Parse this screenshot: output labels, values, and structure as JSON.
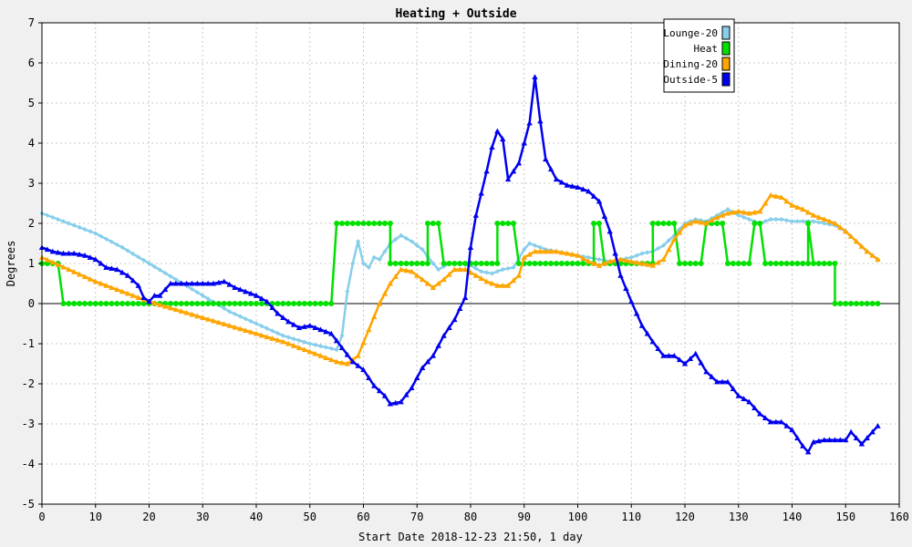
{
  "chart_data": {
    "type": "line",
    "title": "Heating + Outside",
    "xlabel": "Start Date 2018-12-23 21:50, 1 day",
    "ylabel": "Degrees",
    "xlim": [
      0,
      160
    ],
    "ylim": [
      -5,
      7
    ],
    "x_ticks": [
      0,
      10,
      20,
      30,
      40,
      50,
      60,
      70,
      80,
      90,
      100,
      110,
      120,
      130,
      140,
      150,
      160
    ],
    "y_ticks": [
      -5,
      -4,
      -3,
      -2,
      -1,
      0,
      1,
      2,
      3,
      4,
      5,
      6,
      7
    ],
    "grid": true,
    "legend_position": "top-right",
    "series": [
      {
        "name": "Lounge-20",
        "color": "#87ceeb",
        "marker": "diamond",
        "points": [
          [
            0,
            2.25
          ],
          [
            5,
            2.0
          ],
          [
            10,
            1.75
          ],
          [
            15,
            1.4
          ],
          [
            20,
            1.0
          ],
          [
            25,
            0.6
          ],
          [
            30,
            0.2
          ],
          [
            35,
            -0.2
          ],
          [
            40,
            -0.5
          ],
          [
            45,
            -0.8
          ],
          [
            50,
            -1.0
          ],
          [
            55,
            -1.15
          ],
          [
            56,
            -0.8
          ],
          [
            57,
            0.3
          ],
          [
            58,
            1.0
          ],
          [
            59,
            1.55
          ],
          [
            60,
            1.0
          ],
          [
            61,
            0.9
          ],
          [
            62,
            1.15
          ],
          [
            63,
            1.1
          ],
          [
            64,
            1.3
          ],
          [
            65,
            1.5
          ],
          [
            67,
            1.7
          ],
          [
            69,
            1.55
          ],
          [
            71,
            1.35
          ],
          [
            73,
            1.0
          ],
          [
            74,
            0.85
          ],
          [
            76,
            1.0
          ],
          [
            78,
            1.0
          ],
          [
            80,
            0.95
          ],
          [
            82,
            0.8
          ],
          [
            84,
            0.75
          ],
          [
            86,
            0.85
          ],
          [
            88,
            0.9
          ],
          [
            90,
            1.35
          ],
          [
            91,
            1.5
          ],
          [
            92,
            1.45
          ],
          [
            94,
            1.35
          ],
          [
            96,
            1.3
          ],
          [
            98,
            1.25
          ],
          [
            100,
            1.2
          ],
          [
            102,
            1.15
          ],
          [
            104,
            1.1
          ],
          [
            106,
            1.05
          ],
          [
            108,
            1.1
          ],
          [
            110,
            1.15
          ],
          [
            112,
            1.25
          ],
          [
            114,
            1.3
          ],
          [
            116,
            1.45
          ],
          [
            118,
            1.7
          ],
          [
            120,
            2.0
          ],
          [
            122,
            2.1
          ],
          [
            124,
            2.05
          ],
          [
            126,
            2.2
          ],
          [
            128,
            2.35
          ],
          [
            130,
            2.2
          ],
          [
            132,
            2.1
          ],
          [
            134,
            2.0
          ],
          [
            136,
            2.1
          ],
          [
            138,
            2.1
          ],
          [
            140,
            2.05
          ],
          [
            142,
            2.05
          ],
          [
            144,
            2.05
          ],
          [
            146,
            2.0
          ],
          [
            148,
            1.95
          ],
          [
            150,
            1.8
          ],
          [
            152,
            1.55
          ],
          [
            154,
            1.3
          ],
          [
            156,
            1.1
          ]
        ]
      },
      {
        "name": "Heat",
        "color": "#00e000",
        "marker": "circle",
        "points": [
          [
            0,
            1
          ],
          [
            3,
            1
          ],
          [
            4,
            0
          ],
          [
            54,
            0
          ],
          [
            55,
            2
          ],
          [
            65,
            2
          ],
          [
            65,
            1
          ],
          [
            72,
            1
          ],
          [
            72,
            2
          ],
          [
            74,
            2
          ],
          [
            75,
            1
          ],
          [
            85,
            1
          ],
          [
            85,
            2
          ],
          [
            88,
            2
          ],
          [
            89,
            1
          ],
          [
            103,
            1
          ],
          [
            103,
            2
          ],
          [
            104,
            2
          ],
          [
            105,
            1
          ],
          [
            114,
            1
          ],
          [
            114,
            2
          ],
          [
            118,
            2
          ],
          [
            119,
            1
          ],
          [
            123,
            1
          ],
          [
            124,
            2
          ],
          [
            127,
            2
          ],
          [
            128,
            1
          ],
          [
            132,
            1
          ],
          [
            133,
            2
          ],
          [
            134,
            2
          ],
          [
            135,
            1
          ],
          [
            143,
            1
          ],
          [
            143,
            2
          ],
          [
            144,
            1
          ],
          [
            148,
            1
          ],
          [
            148,
            0
          ],
          [
            156,
            0
          ]
        ]
      },
      {
        "name": "Dining-20",
        "color": "#ffa500",
        "marker": "triangle",
        "points": [
          [
            0,
            1.15
          ],
          [
            5,
            0.85
          ],
          [
            10,
            0.55
          ],
          [
            15,
            0.3
          ],
          [
            20,
            0.05
          ],
          [
            25,
            -0.15
          ],
          [
            30,
            -0.35
          ],
          [
            35,
            -0.55
          ],
          [
            40,
            -0.75
          ],
          [
            45,
            -0.95
          ],
          [
            50,
            -1.2
          ],
          [
            55,
            -1.45
          ],
          [
            57,
            -1.5
          ],
          [
            59,
            -1.3
          ],
          [
            61,
            -0.65
          ],
          [
            63,
            0.0
          ],
          [
            65,
            0.5
          ],
          [
            67,
            0.85
          ],
          [
            69,
            0.8
          ],
          [
            71,
            0.6
          ],
          [
            73,
            0.4
          ],
          [
            75,
            0.6
          ],
          [
            77,
            0.85
          ],
          [
            79,
            0.85
          ],
          [
            81,
            0.7
          ],
          [
            83,
            0.55
          ],
          [
            85,
            0.45
          ],
          [
            87,
            0.45
          ],
          [
            89,
            0.7
          ],
          [
            90,
            1.15
          ],
          [
            92,
            1.3
          ],
          [
            94,
            1.3
          ],
          [
            96,
            1.3
          ],
          [
            98,
            1.25
          ],
          [
            100,
            1.2
          ],
          [
            102,
            1.05
          ],
          [
            104,
            0.95
          ],
          [
            106,
            1.05
          ],
          [
            108,
            1.1
          ],
          [
            110,
            1.05
          ],
          [
            112,
            1.0
          ],
          [
            114,
            0.95
          ],
          [
            116,
            1.1
          ],
          [
            118,
            1.6
          ],
          [
            120,
            1.95
          ],
          [
            122,
            2.05
          ],
          [
            124,
            2.0
          ],
          [
            126,
            2.15
          ],
          [
            128,
            2.25
          ],
          [
            130,
            2.3
          ],
          [
            132,
            2.25
          ],
          [
            134,
            2.3
          ],
          [
            136,
            2.7
          ],
          [
            138,
            2.65
          ],
          [
            140,
            2.45
          ],
          [
            142,
            2.35
          ],
          [
            144,
            2.2
          ],
          [
            146,
            2.1
          ],
          [
            148,
            2.0
          ],
          [
            150,
            1.8
          ],
          [
            152,
            1.55
          ],
          [
            154,
            1.3
          ],
          [
            156,
            1.1
          ]
        ]
      },
      {
        "name": "Outside-5",
        "color": "#0000ee",
        "marker": "triangle",
        "points": [
          [
            0,
            1.4
          ],
          [
            2,
            1.3
          ],
          [
            4,
            1.25
          ],
          [
            6,
            1.25
          ],
          [
            8,
            1.2
          ],
          [
            10,
            1.1
          ],
          [
            12,
            0.9
          ],
          [
            14,
            0.85
          ],
          [
            16,
            0.7
          ],
          [
            18,
            0.45
          ],
          [
            19,
            0.15
          ],
          [
            20,
            0.05
          ],
          [
            21,
            0.2
          ],
          [
            22,
            0.2
          ],
          [
            24,
            0.5
          ],
          [
            26,
            0.5
          ],
          [
            28,
            0.5
          ],
          [
            30,
            0.5
          ],
          [
            32,
            0.5
          ],
          [
            34,
            0.55
          ],
          [
            36,
            0.4
          ],
          [
            38,
            0.3
          ],
          [
            40,
            0.2
          ],
          [
            42,
            0.05
          ],
          [
            44,
            -0.25
          ],
          [
            46,
            -0.45
          ],
          [
            48,
            -0.6
          ],
          [
            50,
            -0.55
          ],
          [
            52,
            -0.65
          ],
          [
            54,
            -0.75
          ],
          [
            56,
            -1.1
          ],
          [
            58,
            -1.45
          ],
          [
            60,
            -1.65
          ],
          [
            62,
            -2.05
          ],
          [
            64,
            -2.3
          ],
          [
            65,
            -2.5
          ],
          [
            67,
            -2.45
          ],
          [
            69,
            -2.1
          ],
          [
            71,
            -1.6
          ],
          [
            73,
            -1.3
          ],
          [
            75,
            -0.8
          ],
          [
            77,
            -0.4
          ],
          [
            79,
            0.15
          ],
          [
            80,
            1.4
          ],
          [
            81,
            2.2
          ],
          [
            83,
            3.3
          ],
          [
            84,
            3.9
          ],
          [
            85,
            4.3
          ],
          [
            86,
            4.1
          ],
          [
            87,
            3.1
          ],
          [
            88,
            3.3
          ],
          [
            89,
            3.5
          ],
          [
            90,
            4.0
          ],
          [
            91,
            4.5
          ],
          [
            92,
            5.65
          ],
          [
            93,
            4.55
          ],
          [
            94,
            3.6
          ],
          [
            96,
            3.1
          ],
          [
            98,
            2.95
          ],
          [
            100,
            2.9
          ],
          [
            102,
            2.8
          ],
          [
            104,
            2.55
          ],
          [
            106,
            1.8
          ],
          [
            108,
            0.7
          ],
          [
            110,
            0.05
          ],
          [
            112,
            -0.55
          ],
          [
            114,
            -0.95
          ],
          [
            116,
            -1.3
          ],
          [
            118,
            -1.3
          ],
          [
            120,
            -1.5
          ],
          [
            122,
            -1.25
          ],
          [
            124,
            -1.7
          ],
          [
            126,
            -1.95
          ],
          [
            128,
            -1.95
          ],
          [
            130,
            -2.3
          ],
          [
            132,
            -2.45
          ],
          [
            134,
            -2.75
          ],
          [
            136,
            -2.95
          ],
          [
            138,
            -2.95
          ],
          [
            140,
            -3.15
          ],
          [
            142,
            -3.55
          ],
          [
            143,
            -3.7
          ],
          [
            144,
            -3.45
          ],
          [
            146,
            -3.4
          ],
          [
            148,
            -3.4
          ],
          [
            150,
            -3.4
          ],
          [
            151,
            -3.2
          ],
          [
            153,
            -3.5
          ],
          [
            155,
            -3.2
          ],
          [
            156,
            -3.05
          ]
        ]
      }
    ]
  }
}
